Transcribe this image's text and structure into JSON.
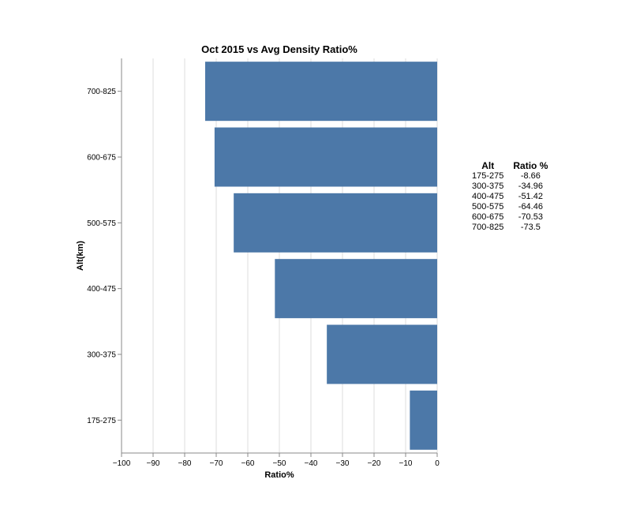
{
  "chart_data": {
    "type": "bar",
    "orientation": "horizontal",
    "title": "Oct 2015 vs Avg Density Ratio%",
    "xlabel": "Ratio%",
    "ylabel": "Alt(km)",
    "categories": [
      "700-825",
      "600-675",
      "500-575",
      "400-475",
      "300-375",
      "175-275"
    ],
    "values": [
      -73.5,
      -70.53,
      -64.46,
      -51.42,
      -34.96,
      -8.66
    ],
    "xlim": [
      -100,
      0
    ],
    "xticks": [
      -100,
      -90,
      -80,
      -70,
      -60,
      -50,
      -40,
      -30,
      -20,
      -10,
      0
    ],
    "xtick_labels": [
      "−100",
      "−90",
      "−80",
      "−70",
      "−60",
      "−50",
      "−40",
      "−30",
      "−20",
      "−10",
      "0"
    ],
    "grid": true,
    "bar_color": "#4c78a8",
    "grid_color": "#dddddd"
  },
  "table": {
    "headers": [
      "Alt",
      "Ratio %"
    ],
    "rows": [
      [
        "175-275",
        "-8.66"
      ],
      [
        "300-375",
        "-34.96"
      ],
      [
        "400-475",
        "-51.42"
      ],
      [
        "500-575",
        "-64.46"
      ],
      [
        "600-675",
        "-70.53"
      ],
      [
        "700-825",
        "-73.5"
      ]
    ]
  }
}
